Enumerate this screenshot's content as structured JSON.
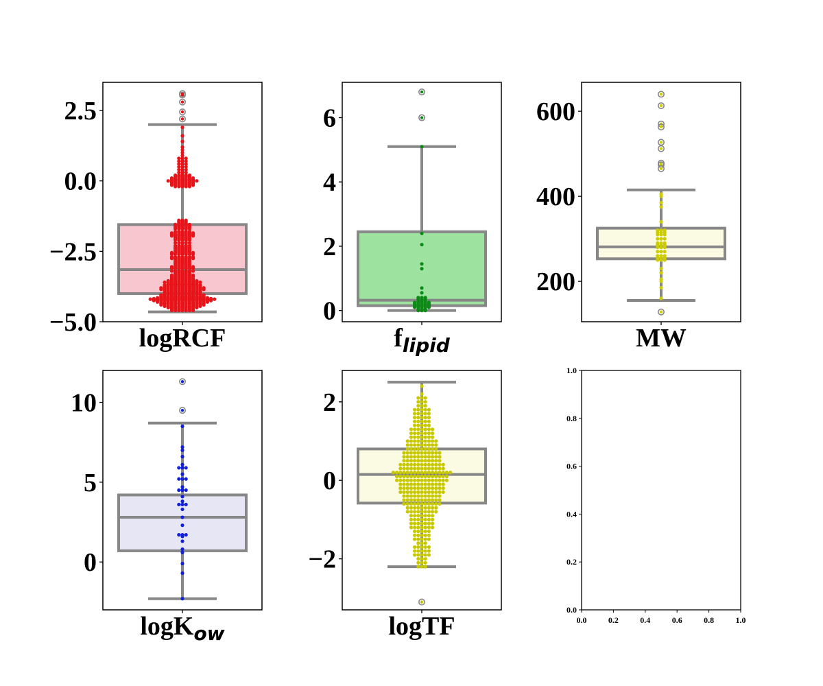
{
  "chart_data": [
    {
      "type": "box",
      "xlabel": "logRCF",
      "xlabel_main": "logRCF",
      "xlabel_sub": "",
      "ylim": [
        -5.0,
        3.5
      ],
      "yticks": [
        -5.0,
        -2.5,
        0.0,
        2.5
      ],
      "ytick_labels": [
        "−5.0",
        "−2.5",
        "0.0",
        "2.5"
      ],
      "box": {
        "whisker_low": -4.65,
        "q1": -4.0,
        "median": -3.15,
        "q3": -1.55,
        "whisker_high": 2.0
      },
      "box_color": "#f8c6cf",
      "point_color": "#e8141a",
      "outliers": [
        3.1,
        3.05,
        2.8,
        2.45,
        2.2
      ],
      "points": [
        -4.6,
        -4.55,
        -4.5,
        -4.45,
        -4.4,
        -4.35,
        -4.3,
        -4.25,
        -4.22,
        -4.2,
        -4.18,
        -4.15,
        -4.12,
        -4.1,
        -4.05,
        -4.0,
        -3.95,
        -3.9,
        -3.85,
        -3.8,
        -3.75,
        -3.7,
        -3.68,
        -3.65,
        -3.6,
        -3.55,
        -3.5,
        -3.45,
        -3.4,
        -3.35,
        -3.3,
        -3.25,
        -3.2,
        -3.1,
        -3.05,
        -3.0,
        -2.95,
        -2.9,
        -2.85,
        -2.8,
        -2.75,
        -2.7,
        -2.6,
        -2.55,
        -2.5,
        -2.45,
        -2.4,
        -2.35,
        -2.3,
        -2.2,
        -2.1,
        -2.05,
        -2.0,
        -1.95,
        -1.9,
        -1.85,
        -1.8,
        -1.7,
        -1.65,
        -1.6,
        -1.55,
        -1.5,
        -1.45,
        -1.4,
        -0.2,
        -0.15,
        -0.1,
        -0.05,
        0.0,
        0.05,
        0.1,
        0.15,
        0.2,
        0.3,
        0.4,
        0.5,
        0.6,
        0.7,
        0.8,
        0.9,
        1.0,
        1.1,
        1.2,
        1.4,
        1.6,
        1.9
      ],
      "point_density": [
        7,
        7,
        9,
        11,
        13,
        13,
        15,
        17,
        17,
        19,
        17,
        15,
        13,
        13,
        13,
        11,
        11,
        11,
        13,
        13,
        11,
        11,
        9,
        9,
        11,
        9,
        7,
        7,
        7,
        7,
        5,
        5,
        7,
        7,
        7,
        5,
        5,
        5,
        5,
        5,
        7,
        7,
        7,
        7,
        5,
        5,
        5,
        5,
        5,
        5,
        5,
        5,
        5,
        7,
        7,
        7,
        5,
        5,
        5,
        5,
        5,
        3,
        3,
        3,
        5,
        7,
        7,
        7,
        9,
        7,
        7,
        5,
        5,
        3,
        3,
        3,
        3,
        3,
        3,
        1,
        1,
        1,
        1,
        1,
        1,
        1
      ]
    },
    {
      "type": "box",
      "xlabel": "f_lipid",
      "xlabel_main": "f",
      "xlabel_sub": "lipid",
      "ylim": [
        -0.35,
        7.1
      ],
      "yticks": [
        0,
        2,
        4,
        6
      ],
      "ytick_labels": [
        "0",
        "2",
        "4",
        "6"
      ],
      "box": {
        "whisker_low": 0.0,
        "q1": 0.15,
        "median": 0.32,
        "q3": 2.45,
        "whisker_high": 5.1
      },
      "box_color": "#9de29e",
      "point_color": "#0c8a16",
      "outliers": [
        6.8,
        6.0
      ],
      "points": [
        0.0,
        0.05,
        0.1,
        0.15,
        0.2,
        0.25,
        0.3,
        0.35,
        0.4,
        0.55,
        0.7,
        1.3,
        1.45,
        2.05,
        2.4,
        5.1
      ],
      "point_density": [
        3,
        3,
        5,
        5,
        5,
        5,
        3,
        3,
        3,
        1,
        1,
        1,
        1,
        1,
        1,
        1
      ]
    },
    {
      "type": "box",
      "xlabel": "MW",
      "xlabel_main": "MW",
      "xlabel_sub": "",
      "ylim": [
        105,
        668
      ],
      "yticks": [
        200,
        400,
        600
      ],
      "ytick_labels": [
        "200",
        "400",
        "600"
      ],
      "box": {
        "whisker_low": 155,
        "q1": 253,
        "median": 281,
        "q3": 325,
        "whisker_high": 415
      },
      "box_color": "#fbfbe3",
      "point_color": "#cccc00",
      "outliers": [
        640,
        613,
        570,
        563,
        527,
        512,
        478,
        474,
        465,
        128
      ],
      "points": [
        160,
        185,
        200,
        205,
        220,
        230,
        250,
        255,
        260,
        270,
        280,
        285,
        290,
        300,
        310,
        315,
        320,
        340,
        375,
        385,
        400,
        405
      ],
      "point_density": [
        1,
        1,
        1,
        1,
        1,
        1,
        3,
        3,
        3,
        3,
        3,
        3,
        3,
        3,
        3,
        3,
        3,
        1,
        1,
        1,
        1,
        1
      ]
    },
    {
      "type": "box",
      "xlabel": "logK_ow",
      "xlabel_main": "logK",
      "xlabel_sub": "ow",
      "ylim": [
        -3.0,
        12.0
      ],
      "yticks": [
        0,
        5,
        10
      ],
      "ytick_labels": [
        "0",
        "5",
        "10"
      ],
      "box": {
        "whisker_low": -2.3,
        "q1": 0.7,
        "median": 2.8,
        "q3": 4.2,
        "whisker_high": 8.7
      },
      "box_color": "#e6e6f5",
      "point_color": "#1020d8",
      "outliers": [
        11.3,
        9.5
      ],
      "points": [
        -2.3,
        -0.7,
        -0.1,
        0.6,
        0.8,
        1.3,
        1.6,
        1.7,
        2.3,
        2.8,
        3.3,
        3.6,
        3.8,
        4.1,
        4.5,
        4.7,
        5.2,
        5.5,
        5.9,
        6.1,
        6.6,
        7.0,
        7.2,
        8.5
      ],
      "point_density": [
        1,
        1,
        1,
        1,
        1,
        1,
        1,
        3,
        1,
        1,
        1,
        3,
        1,
        1,
        3,
        1,
        3,
        1,
        3,
        1,
        1,
        1,
        1,
        1
      ]
    },
    {
      "type": "box",
      "xlabel": "logTF",
      "xlabel_main": "logTF",
      "xlabel_sub": "",
      "ylim": [
        -3.3,
        2.8
      ],
      "yticks": [
        -2,
        0,
        2
      ],
      "ytick_labels": [
        "−2",
        "0",
        "2"
      ],
      "box": {
        "whisker_low": -2.2,
        "q1": -0.58,
        "median": 0.15,
        "q3": 0.8,
        "whisker_high": 2.5
      },
      "box_color": "#fbfbe3",
      "point_color": "#c8c800",
      "outliers": [
        -3.1
      ],
      "points": [
        -2.2,
        -2.1,
        -2.0,
        -1.9,
        -1.8,
        -1.7,
        -1.6,
        -1.5,
        -1.4,
        -1.3,
        -1.2,
        -1.1,
        -1.0,
        -0.9,
        -0.8,
        -0.7,
        -0.6,
        -0.5,
        -0.4,
        -0.3,
        -0.2,
        -0.1,
        0.0,
        0.1,
        0.2,
        0.3,
        0.4,
        0.5,
        0.6,
        0.7,
        0.8,
        0.9,
        1.0,
        1.1,
        1.2,
        1.3,
        1.4,
        1.5,
        1.6,
        1.7,
        1.8,
        1.9,
        2.0,
        2.1,
        2.2,
        2.4
      ],
      "point_density": [
        3,
        3,
        3,
        5,
        5,
        5,
        3,
        5,
        5,
        5,
        7,
        7,
        7,
        7,
        9,
        9,
        11,
        11,
        11,
        13,
        13,
        13,
        15,
        15,
        17,
        13,
        13,
        11,
        11,
        11,
        9,
        9,
        9,
        7,
        7,
        7,
        5,
        5,
        5,
        5,
        5,
        3,
        3,
        3,
        1,
        1
      ]
    },
    {
      "type": "empty",
      "xlim": [
        0.0,
        1.0
      ],
      "ylim": [
        0.0,
        1.0
      ],
      "xticks": [
        0.0,
        0.2,
        0.4,
        0.6,
        0.8,
        1.0
      ],
      "xtick_labels": [
        "0.0",
        "0.2",
        "0.4",
        "0.6",
        "0.8",
        "1.0"
      ],
      "yticks": [
        0.0,
        0.2,
        0.4,
        0.6,
        0.8,
        1.0
      ],
      "ytick_labels": [
        "0.0",
        "0.2",
        "0.4",
        "0.6",
        "0.8",
        "1.0"
      ]
    }
  ]
}
